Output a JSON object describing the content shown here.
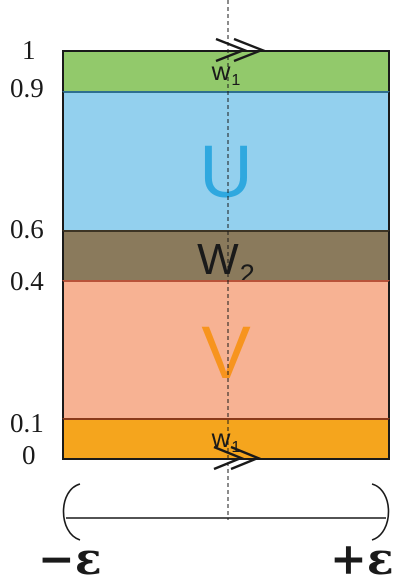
{
  "bands": [
    {
      "id": "w1-top",
      "label": "w",
      "subscript": "1",
      "from": 0.9,
      "to": 1.0,
      "color": "#92c96b"
    },
    {
      "id": "u",
      "label": "U",
      "subscript": "",
      "from": 0.6,
      "to": 0.9,
      "color": "#93d0ee",
      "text_color": "#2fa8df"
    },
    {
      "id": "w2",
      "label": "W",
      "subscript": "2",
      "from": 0.4,
      "to": 0.6,
      "color": "#8a7a5c"
    },
    {
      "id": "v",
      "label": "V",
      "subscript": "",
      "from": 0.1,
      "to": 0.4,
      "color": "#f7b293",
      "text_color": "#f7941e"
    },
    {
      "id": "w1-bottom",
      "label": "w",
      "subscript": "1",
      "from": 0.0,
      "to": 0.1,
      "color": "#f5a51d"
    }
  ],
  "ticks": [
    "1",
    "0.9",
    "0.6",
    "0.4",
    "0.1",
    "0"
  ],
  "epsilon": {
    "minus": "−ε",
    "plus": "+ε"
  }
}
